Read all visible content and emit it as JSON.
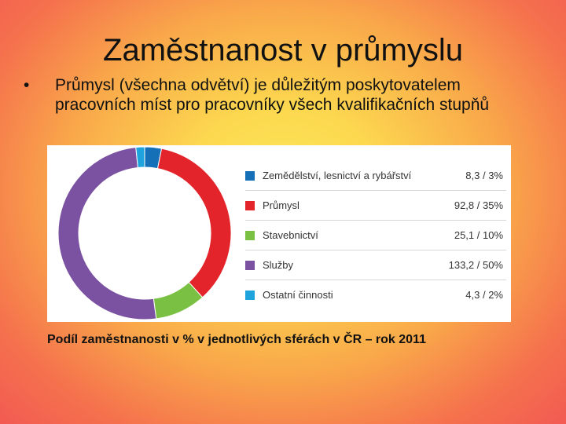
{
  "slide": {
    "title": "Zaměstnanost v průmyslu",
    "bullet_marker": "•",
    "bullet": "Průmysl (všechna odvětví) je důležitým poskytovatelem pracovních míst pro pracovníky všech kvalifikačních stupňů",
    "caption": "Podíl zaměstnanosti v % v jednotlivých sférách v ČR – rok 2011"
  },
  "chart_data": {
    "type": "pie",
    "title": "",
    "legend_position": "right",
    "categories": [
      "Zemědělství, lesnictví a rybářství",
      "Průmysl",
      "Stavebnictví",
      "Služby",
      "Ostatní činnosti"
    ],
    "values": [
      8.3,
      92.8,
      25.1,
      133.2,
      4.3
    ],
    "percents": [
      3,
      35,
      10,
      50,
      2
    ],
    "value_labels": [
      "8,3 / 3%",
      "92,8 / 35%",
      "25,1 / 10%",
      "133,2 / 50%",
      "4,3 / 2%"
    ],
    "colors": [
      "#1570b8",
      "#e3242b",
      "#7ac143",
      "#7b52a1",
      "#1fa3dc"
    ]
  }
}
